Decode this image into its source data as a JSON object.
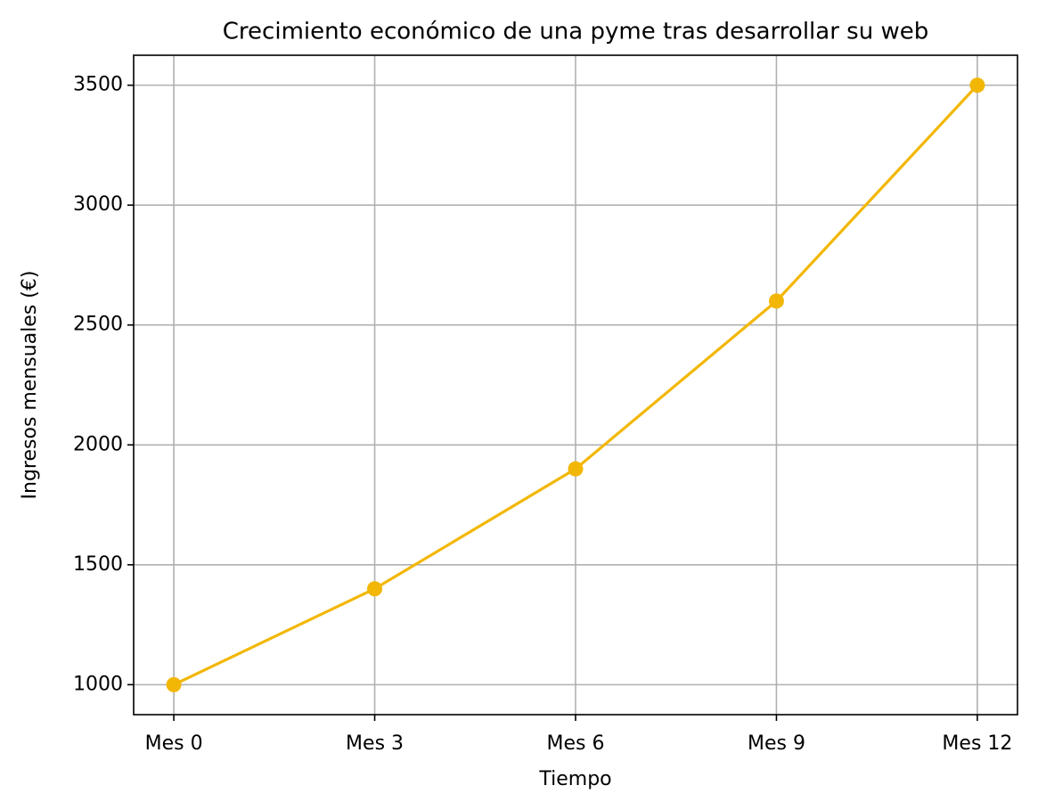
{
  "chart_data": {
    "type": "line",
    "title": "Crecimiento económico de una pyme tras desarrollar su web",
    "x_label": "Tiempo",
    "y_label": "Ingresos mensuales (€)",
    "categories": [
      "Mes 0",
      "Mes 3",
      "Mes 6",
      "Mes 9",
      "Mes 12"
    ],
    "values": [
      1000,
      1400,
      1900,
      2600,
      3500
    ],
    "color": "#f2b705",
    "ylim": [
      875,
      3625
    ],
    "yticks": [
      1000,
      1500,
      2000,
      2500,
      3000,
      3500
    ],
    "grid": true
  }
}
